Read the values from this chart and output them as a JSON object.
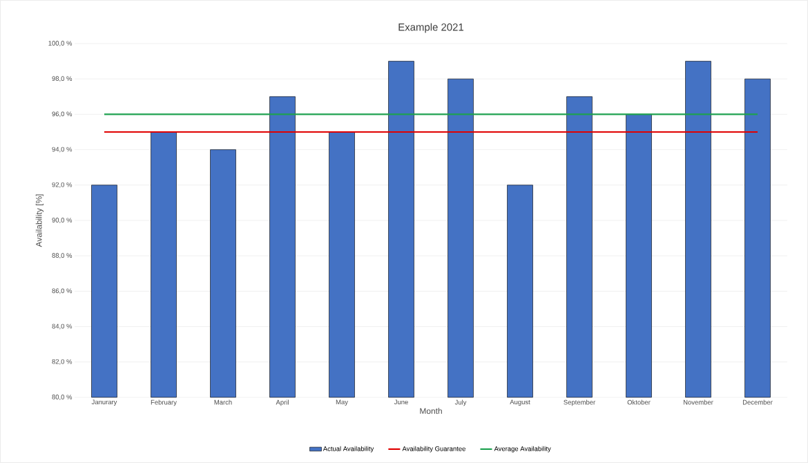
{
  "chart_data": {
    "type": "bar",
    "title": "Example 2021",
    "xlabel": "Month",
    "ylabel": "Availability [%]",
    "categories": [
      "Janurary",
      "February",
      "March",
      "April",
      "May",
      "June",
      "July",
      "August",
      "September",
      "Oktober",
      "November",
      "December"
    ],
    "series": [
      {
        "name": "Actual Availability",
        "color": "#4472c4",
        "values": [
          92,
          95,
          94,
          97,
          95,
          99,
          98,
          92,
          97,
          96,
          99,
          98
        ]
      },
      {
        "name": "Availability Guarantee",
        "type": "line",
        "color": "#e00000",
        "values": [
          95,
          95,
          95,
          95,
          95,
          95,
          95,
          95,
          95,
          95,
          95,
          95
        ]
      },
      {
        "name": "Average Availability",
        "type": "line",
        "color": "#1ea14f",
        "values": [
          96,
          96,
          96,
          96,
          96,
          96,
          96,
          96,
          96,
          96,
          96,
          96
        ]
      }
    ],
    "ylim": [
      80,
      100
    ],
    "yticks": [
      {
        "value": 80,
        "label": "80,0 %"
      },
      {
        "value": 82,
        "label": "82,0 %"
      },
      {
        "value": 84,
        "label": "84,0 %"
      },
      {
        "value": 86,
        "label": "86,0 %"
      },
      {
        "value": 88,
        "label": "88,0 %"
      },
      {
        "value": 90,
        "label": "90,0 %"
      },
      {
        "value": 92,
        "label": "92,0 %"
      },
      {
        "value": 94,
        "label": "94,0 %"
      },
      {
        "value": 96,
        "label": "96,0 %"
      },
      {
        "value": 98,
        "label": "98,0 %"
      },
      {
        "value": 100,
        "label": "100,0 %"
      }
    ],
    "grid": "y",
    "legend": "bottom",
    "marker": "none",
    "line_style": "solid"
  }
}
